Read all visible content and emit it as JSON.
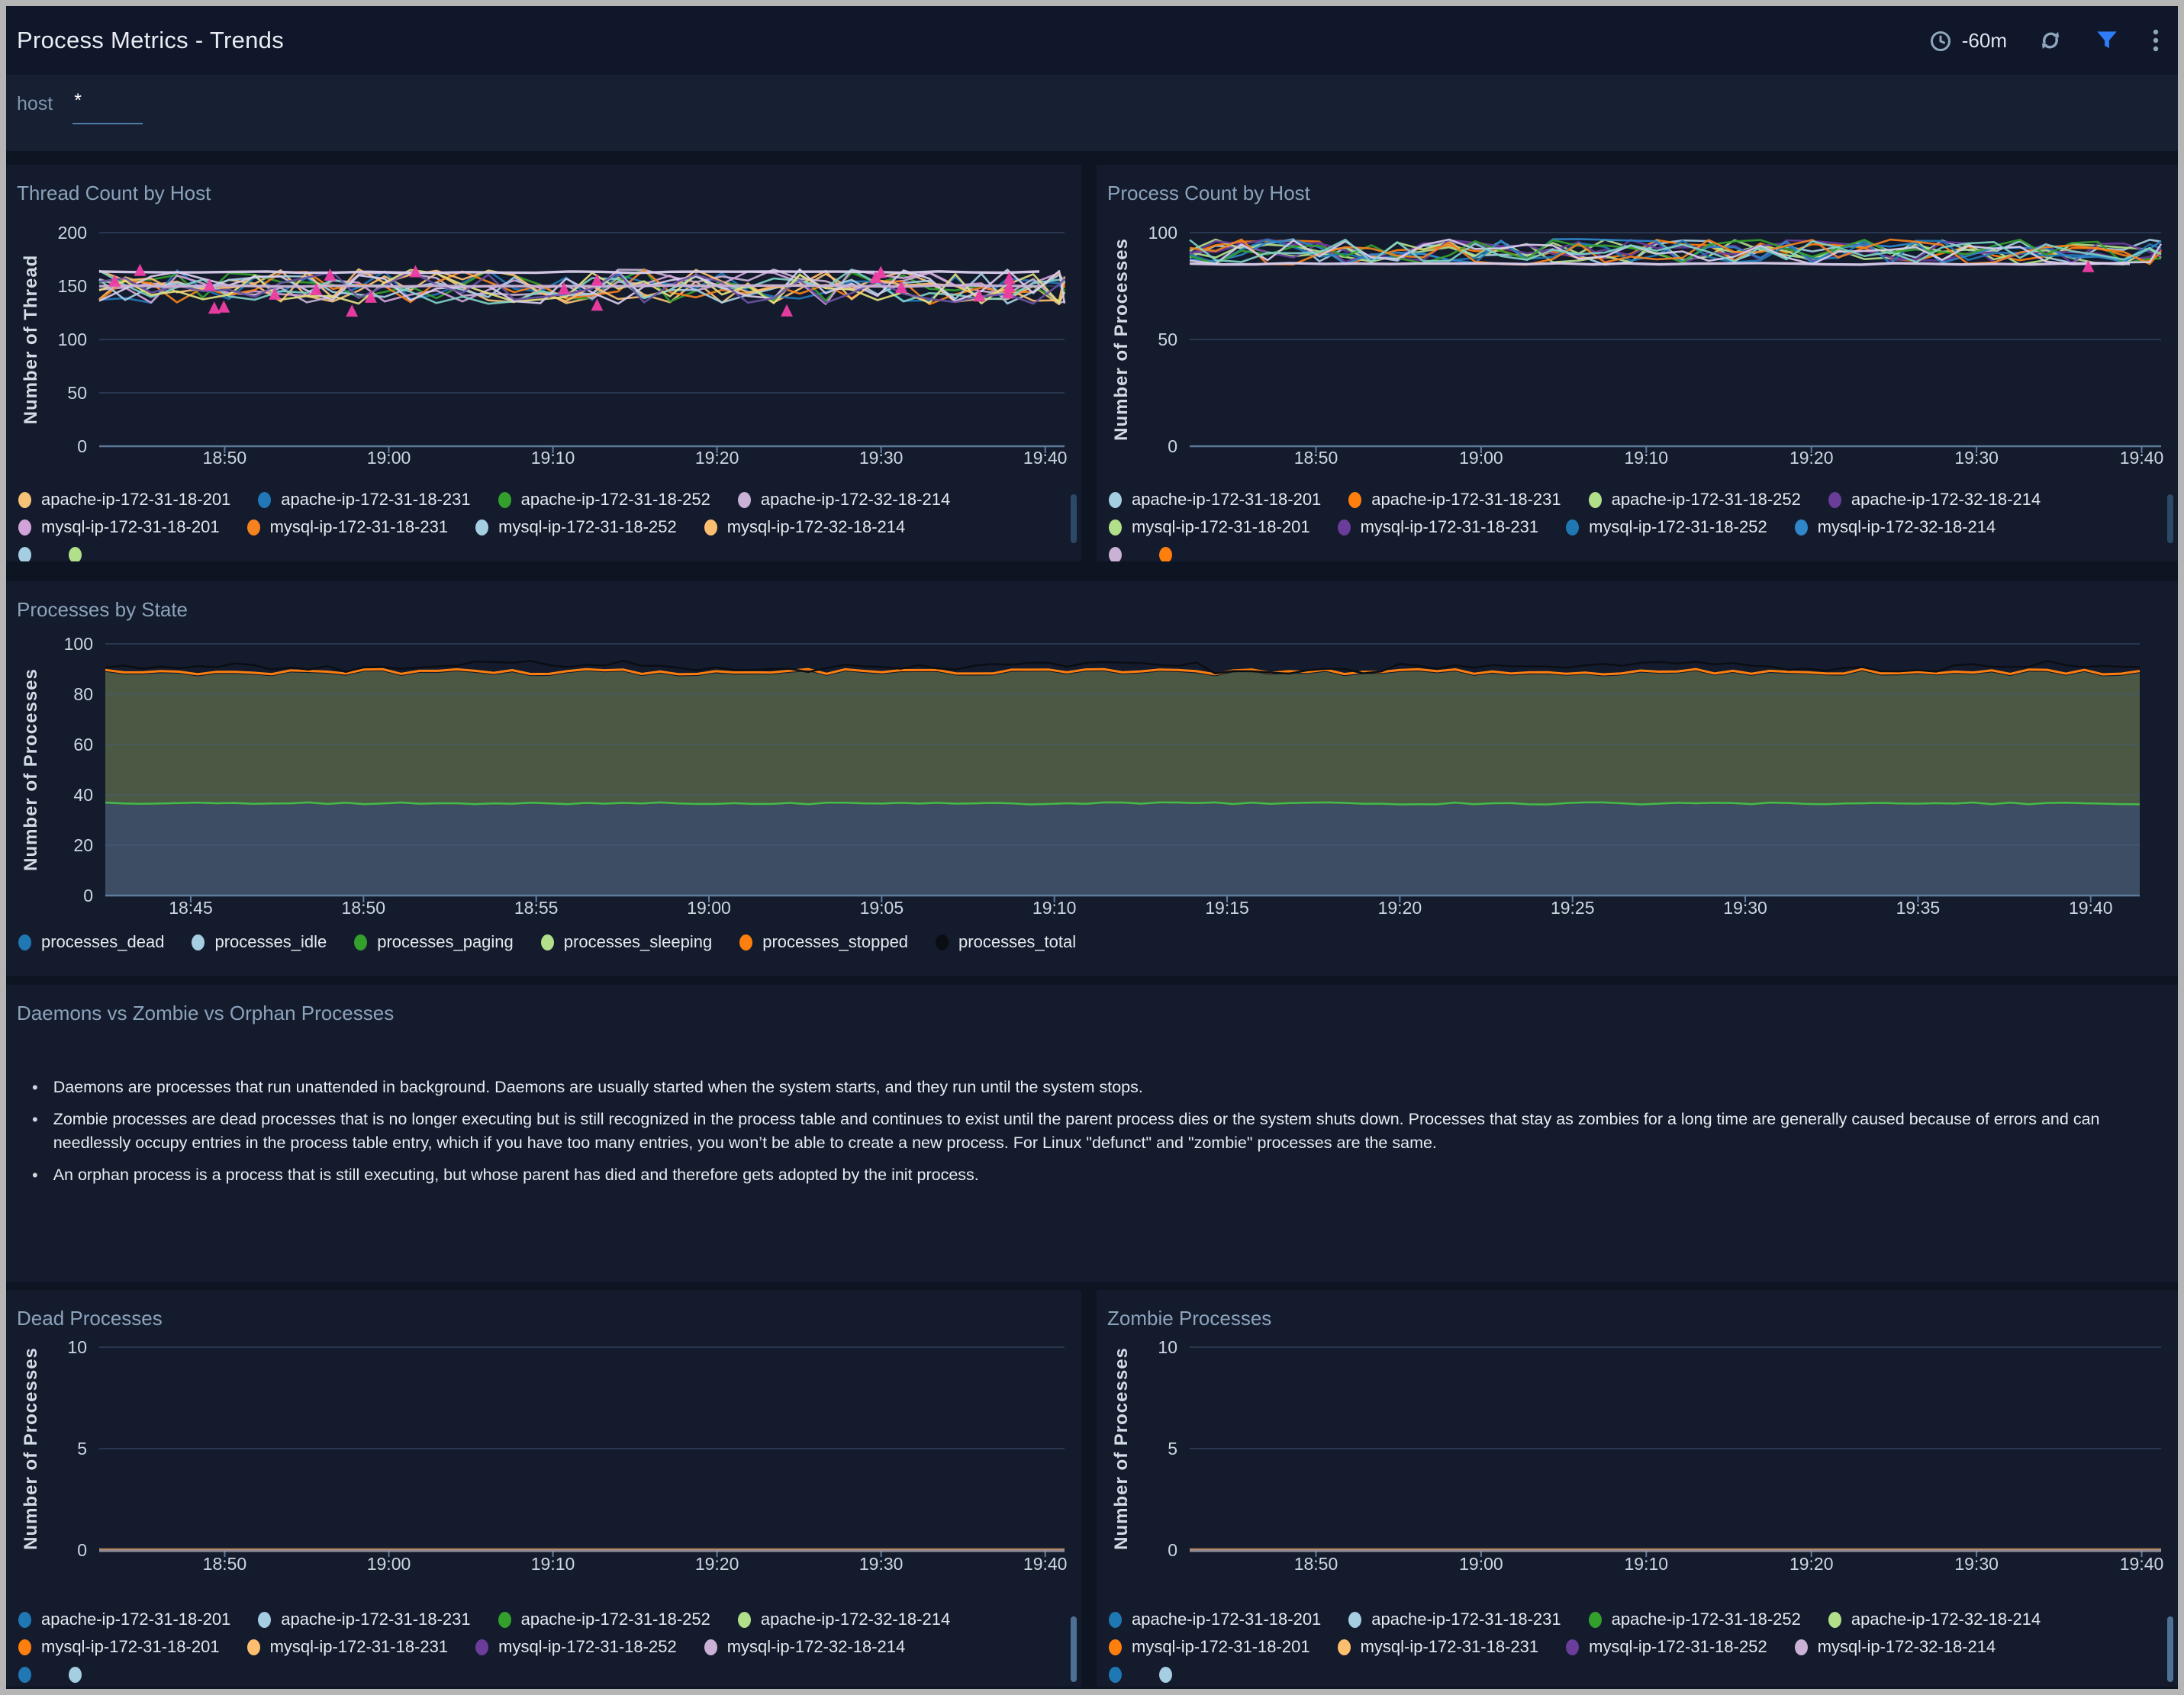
{
  "header": {
    "title": "Process Metrics - Trends",
    "time_range": "-60m",
    "filter": {
      "label": "host",
      "value": "*"
    }
  },
  "text_panel": {
    "title": "Daemons vs Zombie vs Orphan Processes",
    "bullets": [
      "Daemons are processes that run unattended in background. Daemons are usually started when the system starts, and they run until the system stops.",
      "Zombie processes are dead processes that is no longer executing but is still recognized in the process table and continues to exist until the parent process dies or the system shuts down. Processes that stay as zombies for a long time are generally caused because of errors and can needlessly occupy entries in the process table entry, which if you have too many entries, you won’t be able to create a new process. For Linux \"defunct\" and \"zombie\" processes are the same.",
      "An orphan process is a process that is still executing, but whose parent has died and therefore gets adopted by the init process."
    ]
  },
  "chart_data": [
    {
      "id": "thread-count-by-host",
      "type": "line",
      "title": "Thread Count by Host",
      "ylabel": "Number of Thread",
      "ylim": [
        0,
        200
      ],
      "yticks": [
        0,
        50,
        100,
        150,
        200
      ],
      "xticks": [
        "18:50",
        "19:00",
        "19:10",
        "19:20",
        "19:30",
        "19:40"
      ],
      "value_band": [
        133,
        166
      ],
      "note": "12 overlapping host series oscillating between ~133 and ~166 threads for the whole hour",
      "series": [
        {
          "name": "apache-ip-172-31-18-201",
          "color": "#f6c277"
        },
        {
          "name": "apache-ip-172-31-18-231",
          "color": "#2277b8"
        },
        {
          "name": "apache-ip-172-31-18-252",
          "color": "#33a02c"
        },
        {
          "name": "apache-ip-172-32-18-214",
          "color": "#cab2d6"
        },
        {
          "name": "mysql-ip-172-31-18-201",
          "color": "#d2a3d9"
        },
        {
          "name": "mysql-ip-172-31-18-231",
          "color": "#f5821f"
        },
        {
          "name": "mysql-ip-172-31-18-252",
          "color": "#a6cee3"
        },
        {
          "name": "mysql-ip-172-32-18-214",
          "color": "#fdbf6f"
        }
      ],
      "extra_line_colors": [
        "#7fd0c5",
        "#e3de7e",
        "#d9cdec",
        "#6a51a3"
      ],
      "flat_series": [
        {
          "color": "#d9cdec",
          "value": 163
        },
        {
          "color": "#cab2d6",
          "value": 150
        }
      ],
      "markers": {
        "shape": "triangle",
        "color": "#ee3da4",
        "count": 22,
        "band": [
          125,
          171
        ]
      },
      "legend_rows": [
        [
          {
            "name": "apache-ip-172-31-18-201",
            "color": "#f6c277"
          },
          {
            "name": "apache-ip-172-31-18-231",
            "color": "#2277b8"
          },
          {
            "name": "apache-ip-172-31-18-252",
            "color": "#33a02c"
          },
          {
            "name": "apache-ip-172-32-18-214",
            "color": "#cab2d6"
          }
        ],
        [
          {
            "name": "mysql-ip-172-31-18-201",
            "color": "#d2a3d9"
          },
          {
            "name": "mysql-ip-172-31-18-231",
            "color": "#f5821f"
          },
          {
            "name": "mysql-ip-172-31-18-252",
            "color": "#a6cee3"
          },
          {
            "name": "mysql-ip-172-32-18-214",
            "color": "#fdbf6f"
          }
        ],
        [
          {
            "name": "",
            "color": "#a6cee3",
            "clipped": true
          },
          {
            "name": "",
            "color": "#b2df8a",
            "clipped": true
          }
        ]
      ]
    },
    {
      "id": "process-count-by-host",
      "type": "line",
      "title": "Process Count by Host",
      "ylabel": "Number of Processes",
      "ylim": [
        0,
        100
      ],
      "yticks": [
        0,
        50,
        100
      ],
      "xticks": [
        "18:50",
        "19:00",
        "19:10",
        "19:20",
        "19:30",
        "19:40"
      ],
      "value_band": [
        85,
        97
      ],
      "note": "12 overlapping host series oscillating between ~85 and ~97 processes for the whole hour",
      "series": [
        {
          "name": "apache-ip-172-31-18-201",
          "color": "#a6cee3"
        },
        {
          "name": "apache-ip-172-31-18-231",
          "color": "#ff7f0e"
        },
        {
          "name": "apache-ip-172-31-18-252",
          "color": "#b2df8a"
        },
        {
          "name": "apache-ip-172-32-18-214",
          "color": "#6a3d9a"
        },
        {
          "name": "mysql-ip-172-31-18-201",
          "color": "#b2df8a"
        },
        {
          "name": "mysql-ip-172-31-18-231",
          "color": "#6a3d9a"
        },
        {
          "name": "mysql-ip-172-31-18-252",
          "color": "#1f78b4"
        },
        {
          "name": "mysql-ip-172-32-18-214",
          "color": "#2f86c9"
        }
      ],
      "extra_line_colors": [
        "#33a02c",
        "#f5821f",
        "#d9cdec",
        "#7fd0c5"
      ],
      "flat_series": [
        {
          "color": "#d9cdec",
          "value": 85.4
        }
      ],
      "markers": {
        "shape": "triangle",
        "color": "#ee3da4",
        "count": 1,
        "band": [
          84,
          86
        ]
      },
      "legend_rows": [
        [
          {
            "name": "apache-ip-172-31-18-201",
            "color": "#a6cee3"
          },
          {
            "name": "apache-ip-172-31-18-231",
            "color": "#ff7f0e"
          },
          {
            "name": "apache-ip-172-31-18-252",
            "color": "#b2df8a"
          },
          {
            "name": "apache-ip-172-32-18-214",
            "color": "#6a3d9a"
          }
        ],
        [
          {
            "name": "mysql-ip-172-31-18-201",
            "color": "#b2df8a"
          },
          {
            "name": "mysql-ip-172-31-18-231",
            "color": "#6a3d9a"
          },
          {
            "name": "mysql-ip-172-31-18-252",
            "color": "#1f78b4"
          },
          {
            "name": "mysql-ip-172-32-18-214",
            "color": "#2f86c9"
          }
        ],
        [
          {
            "name": "",
            "color": "#cab2d6",
            "clipped": true
          },
          {
            "name": "",
            "color": "#ff7f0e",
            "clipped": true
          }
        ]
      ]
    },
    {
      "id": "processes-by-state",
      "type": "area",
      "stacked": true,
      "title": "Processes by State",
      "ylabel": "Number of Processes",
      "ylim": [
        0,
        100
      ],
      "yticks": [
        0,
        20,
        40,
        60,
        80,
        100
      ],
      "xticks": [
        "18:45",
        "18:50",
        "18:55",
        "19:00",
        "19:05",
        "19:10",
        "19:15",
        "19:20",
        "19:25",
        "19:30",
        "19:35",
        "19:40"
      ],
      "series": [
        {
          "name": "processes_dead",
          "color": "#1f78b4",
          "values": [
            0,
            0,
            0,
            0,
            0,
            0,
            0,
            0,
            0,
            0,
            0,
            0
          ]
        },
        {
          "name": "processes_idle",
          "color": "#a6cee3",
          "values": [
            36,
            36,
            36,
            36,
            36,
            36,
            36,
            36,
            36,
            36,
            36,
            36
          ]
        },
        {
          "name": "processes_paging",
          "color": "#33a02c",
          "values": [
            0,
            0,
            0,
            0,
            0,
            0,
            0,
            0,
            0,
            0,
            0,
            0
          ]
        },
        {
          "name": "processes_sleeping",
          "color": "#b2df8a",
          "values": [
            53,
            52,
            53,
            53,
            52,
            53,
            53,
            52,
            53,
            53,
            53,
            52
          ]
        },
        {
          "name": "processes_stopped",
          "color": "#ff7f0e",
          "values": [
            0.5,
            0.5,
            0.5,
            0.5,
            0.5,
            0.5,
            0.5,
            0.5,
            0.5,
            0.5,
            0.5,
            0.5
          ]
        },
        {
          "name": "processes_total",
          "color": "#0a0e14",
          "values": [
            91,
            90,
            92,
            90,
            91,
            92,
            89,
            91,
            92,
            90,
            92,
            91
          ],
          "unstacked": true
        }
      ],
      "fills": {
        "idle_area": "#3d4e64",
        "sleeping_area": "#4b5843"
      },
      "legend_rows": [
        [
          {
            "name": "processes_dead",
            "color": "#1f78b4"
          },
          {
            "name": "processes_idle",
            "color": "#a6cee3"
          },
          {
            "name": "processes_paging",
            "color": "#33a02c"
          },
          {
            "name": "processes_sleeping",
            "color": "#b2df8a"
          },
          {
            "name": "processes_stopped",
            "color": "#ff7f0e"
          },
          {
            "name": "processes_total",
            "color": "#0a0e14"
          }
        ]
      ]
    },
    {
      "id": "dead-processes",
      "type": "line",
      "title": "Dead Processes",
      "ylabel": "Number of Processes",
      "ylim": [
        0,
        10
      ],
      "yticks": [
        0,
        5,
        10
      ],
      "xticks": [
        "18:50",
        "19:00",
        "19:10",
        "19:20",
        "19:30",
        "19:40"
      ],
      "note": "All host series flat at 0 for the whole hour",
      "series": [
        {
          "name": "apache-ip-172-31-18-201",
          "color": "#1f78b4",
          "values": [
            0,
            0,
            0,
            0,
            0,
            0
          ]
        },
        {
          "name": "apache-ip-172-31-18-231",
          "color": "#a6cee3",
          "values": [
            0,
            0,
            0,
            0,
            0,
            0
          ]
        },
        {
          "name": "apache-ip-172-31-18-252",
          "color": "#33a02c",
          "values": [
            0,
            0,
            0,
            0,
            0,
            0
          ]
        },
        {
          "name": "apache-ip-172-32-18-214",
          "color": "#b2df8a",
          "values": [
            0,
            0,
            0,
            0,
            0,
            0
          ]
        },
        {
          "name": "mysql-ip-172-31-18-201",
          "color": "#ff7f0e",
          "values": [
            0,
            0,
            0,
            0,
            0,
            0
          ]
        },
        {
          "name": "mysql-ip-172-31-18-231",
          "color": "#fdbf6f",
          "values": [
            0,
            0,
            0,
            0,
            0,
            0
          ]
        },
        {
          "name": "mysql-ip-172-31-18-252",
          "color": "#6a3d9a",
          "values": [
            0,
            0,
            0,
            0,
            0,
            0
          ]
        },
        {
          "name": "mysql-ip-172-32-18-214",
          "color": "#cab2d6",
          "values": [
            0,
            0,
            0,
            0,
            0,
            0
          ]
        }
      ],
      "legend_rows": [
        [
          {
            "name": "apache-ip-172-31-18-201",
            "color": "#1f78b4"
          },
          {
            "name": "apache-ip-172-31-18-231",
            "color": "#a6cee3"
          },
          {
            "name": "apache-ip-172-31-18-252",
            "color": "#33a02c"
          },
          {
            "name": "apache-ip-172-32-18-214",
            "color": "#b2df8a"
          }
        ],
        [
          {
            "name": "mysql-ip-172-31-18-201",
            "color": "#ff7f0e"
          },
          {
            "name": "mysql-ip-172-31-18-231",
            "color": "#fdbf6f"
          },
          {
            "name": "mysql-ip-172-31-18-252",
            "color": "#6a3d9a"
          },
          {
            "name": "mysql-ip-172-32-18-214",
            "color": "#cab2d6"
          }
        ],
        [
          {
            "name": "",
            "color": "#1f78b4",
            "clipped": true
          },
          {
            "name": "",
            "color": "#a6cee3",
            "clipped": true
          }
        ]
      ]
    },
    {
      "id": "zombie-processes",
      "type": "line",
      "title": "Zombie Processes",
      "ylabel": "Number of Processes",
      "ylim": [
        0,
        10
      ],
      "yticks": [
        0,
        5,
        10
      ],
      "xticks": [
        "18:50",
        "19:00",
        "19:10",
        "19:20",
        "19:30",
        "19:40"
      ],
      "note": "All host series flat at 0 for the whole hour",
      "series": [
        {
          "name": "apache-ip-172-31-18-201",
          "color": "#1f78b4",
          "values": [
            0,
            0,
            0,
            0,
            0,
            0
          ]
        },
        {
          "name": "apache-ip-172-31-18-231",
          "color": "#a6cee3",
          "values": [
            0,
            0,
            0,
            0,
            0,
            0
          ]
        },
        {
          "name": "apache-ip-172-31-18-252",
          "color": "#33a02c",
          "values": [
            0,
            0,
            0,
            0,
            0,
            0
          ]
        },
        {
          "name": "apache-ip-172-32-18-214",
          "color": "#b2df8a",
          "values": [
            0,
            0,
            0,
            0,
            0,
            0
          ]
        },
        {
          "name": "mysql-ip-172-31-18-201",
          "color": "#ff7f0e",
          "values": [
            0,
            0,
            0,
            0,
            0,
            0
          ]
        },
        {
          "name": "mysql-ip-172-31-18-231",
          "color": "#fdbf6f",
          "values": [
            0,
            0,
            0,
            0,
            0,
            0
          ]
        },
        {
          "name": "mysql-ip-172-31-18-252",
          "color": "#6a3d9a",
          "values": [
            0,
            0,
            0,
            0,
            0,
            0
          ]
        },
        {
          "name": "mysql-ip-172-32-18-214",
          "color": "#cab2d6",
          "values": [
            0,
            0,
            0,
            0,
            0,
            0
          ]
        }
      ],
      "legend_rows": [
        [
          {
            "name": "apache-ip-172-31-18-201",
            "color": "#1f78b4"
          },
          {
            "name": "apache-ip-172-31-18-231",
            "color": "#a6cee3"
          },
          {
            "name": "apache-ip-172-31-18-252",
            "color": "#33a02c"
          },
          {
            "name": "apache-ip-172-32-18-214",
            "color": "#b2df8a"
          }
        ],
        [
          {
            "name": "mysql-ip-172-31-18-201",
            "color": "#ff7f0e"
          },
          {
            "name": "mysql-ip-172-31-18-231",
            "color": "#fdbf6f"
          },
          {
            "name": "mysql-ip-172-31-18-252",
            "color": "#6a3d9a"
          },
          {
            "name": "mysql-ip-172-32-18-214",
            "color": "#cab2d6"
          }
        ],
        [
          {
            "name": "",
            "color": "#1f78b4",
            "clipped": true
          },
          {
            "name": "",
            "color": "#a6cee3",
            "clipped": true
          }
        ]
      ]
    }
  ]
}
